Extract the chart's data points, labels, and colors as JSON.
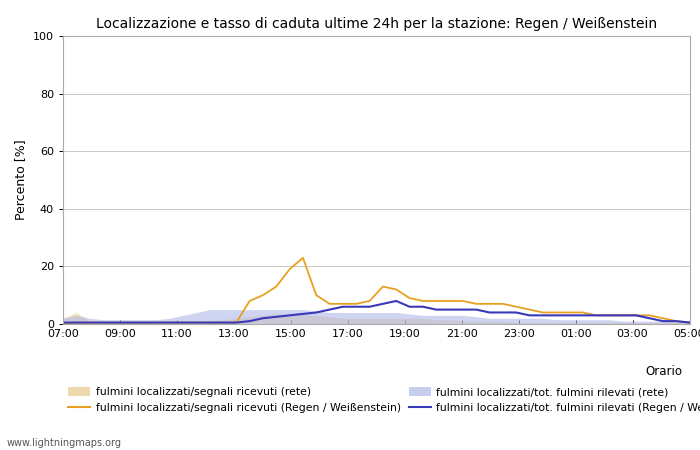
{
  "title": "Localizzazione e tasso di caduta ultime 24h per la stazione: Regen / Weißenstein",
  "ylabel": "Percento [%]",
  "xlabel": "Orario",
  "ylim": [
    0,
    100
  ],
  "yticks": [
    0,
    20,
    40,
    60,
    80,
    100
  ],
  "x_labels": [
    "07:00",
    "09:00",
    "11:00",
    "13:00",
    "15:00",
    "17:00",
    "19:00",
    "21:00",
    "23:00",
    "01:00",
    "03:00",
    "05:00"
  ],
  "watermark": "www.lightningmaps.org",
  "fill_rete_color": "#e8c98a",
  "fill_rete_alpha": 0.55,
  "fill_local_color": "#b0b8e8",
  "fill_local_alpha": 0.6,
  "line_orange_color": "#e8a020",
  "line_blue_color": "#3838b8",
  "x": [
    0,
    1,
    2,
    3,
    4,
    5,
    6,
    7,
    8,
    9,
    10,
    11,
    12,
    13,
    14,
    15,
    16,
    17,
    18,
    19,
    20,
    21,
    22,
    23,
    24,
    25,
    26,
    27,
    28,
    29,
    30,
    31,
    32,
    33,
    34,
    35,
    36,
    37,
    38,
    39,
    40,
    41,
    42,
    43,
    44,
    45,
    46,
    47
  ],
  "fill_rete_y": [
    2,
    4,
    1,
    0.5,
    0.5,
    0.5,
    0.5,
    0.5,
    0.5,
    1,
    1,
    1,
    1.5,
    2,
    2.5,
    3,
    3.5,
    3.5,
    3.5,
    3,
    2.5,
    2,
    2,
    2,
    2,
    2,
    2,
    2,
    1.5,
    1.5,
    1,
    1,
    1,
    1,
    0.5,
    0.5,
    0.5,
    0.5,
    0.5,
    0.5,
    0.5,
    0.5,
    0.5,
    0.5,
    0.5,
    0.5,
    0.5,
    0.5
  ],
  "fill_local_y": [
    2,
    3,
    2,
    1.5,
    1.5,
    1.5,
    1.5,
    1.5,
    2,
    3,
    4,
    5,
    5,
    5,
    5,
    5,
    5,
    5,
    5,
    4.5,
    4,
    4,
    4,
    4,
    4,
    4,
    3.5,
    3,
    3,
    3,
    3,
    2.5,
    2,
    2,
    2,
    2,
    2,
    1.5,
    1.5,
    1.5,
    1.5,
    1.5,
    1,
    1,
    1,
    1,
    1,
    1
  ],
  "line_orange_y": [
    0,
    0.5,
    0.5,
    0.5,
    0.5,
    0.5,
    0.5,
    0.5,
    0.5,
    0.5,
    0.5,
    0.5,
    0.5,
    0.5,
    8,
    10,
    13,
    19,
    23,
    10,
    7,
    7,
    7,
    8,
    13,
    12,
    9,
    8,
    8,
    8,
    8,
    7,
    7,
    7,
    6,
    5,
    4,
    4,
    4,
    4,
    3,
    3,
    3,
    3,
    3,
    2,
    1,
    0.5
  ],
  "line_blue_y": [
    0.5,
    0.5,
    0.5,
    0.5,
    0.5,
    0.5,
    0.5,
    0.5,
    0.5,
    0.5,
    0.5,
    0.5,
    0.5,
    0.5,
    1,
    2,
    2.5,
    3,
    3.5,
    4,
    5,
    6,
    6,
    6,
    7,
    8,
    6,
    6,
    5,
    5,
    5,
    5,
    4,
    4,
    4,
    3,
    3,
    3,
    3,
    3,
    3,
    3,
    3,
    3,
    2,
    1,
    1,
    0.5
  ],
  "legend_fill_rete": "fulmini localizzati/segnali ricevuti (rete)",
  "legend_line_orange": "fulmini localizzati/segnali ricevuti (Regen / Weißenstein)",
  "legend_fill_local": "fulmini localizzati/tot. fulmini rilevati (rete)",
  "legend_line_blue": "fulmini localizzati/tot. fulmini rilevati (Regen / Weißenstein)"
}
